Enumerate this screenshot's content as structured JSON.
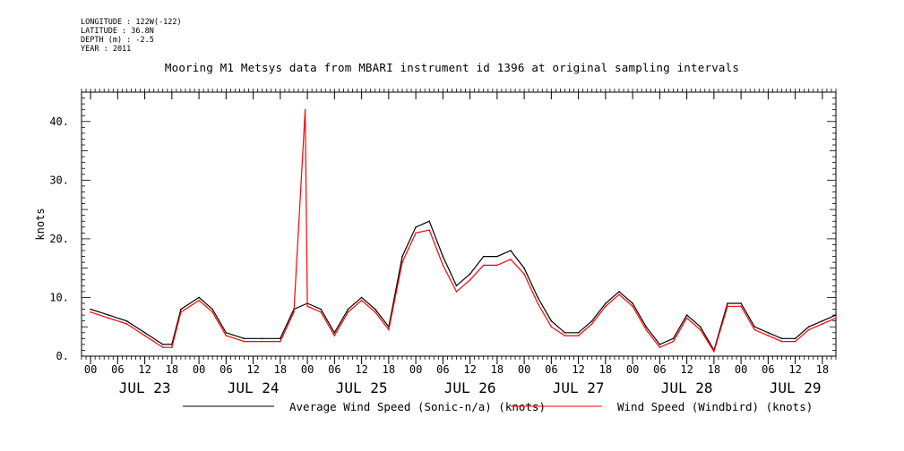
{
  "header": {
    "meta": [
      "LONGITUDE : 122W(-122)",
      "LATITUDE : 36.8N",
      "DEPTH (m) : -2.5",
      "YEAR : 2011"
    ],
    "title": "Mooring M1 Metsys data from MBARI instrument id 1396 at original sampling intervals"
  },
  "chart_data": {
    "type": "line",
    "title": "Mooring M1 Metsys data from MBARI instrument id 1396 at original sampling intervals",
    "xlabel": "",
    "ylabel": "knots",
    "ylim": [
      0,
      45
    ],
    "y_ticks": [
      0,
      10,
      20,
      30,
      40
    ],
    "y_tick_labels": [
      "0.",
      "10.",
      "20.",
      "30.",
      "40."
    ],
    "x_range_hours": [
      "2011-07-22 22:00",
      "2011-07-29 21:00"
    ],
    "x_hour_ticks": [
      "00",
      "06",
      "12",
      "18",
      "00",
      "06",
      "12",
      "18",
      "00",
      "06",
      "12",
      "18",
      "00",
      "06",
      "12",
      "18",
      "00",
      "06",
      "12",
      "18",
      "00",
      "06",
      "12",
      "18",
      "00",
      "06",
      "12",
      "18"
    ],
    "x_day_labels": [
      "JUL 23",
      "JUL 24",
      "JUL 25",
      "JUL 26",
      "JUL 27",
      "JUL 28",
      "JUL 29"
    ],
    "grid": false,
    "legend_position": "bottom",
    "series": [
      {
        "name": "Average Wind Speed (Sonic-n/a) (knots)",
        "color": "#000000",
        "x": [
          "07-23 00:00",
          "07-23 04:00",
          "07-23 08:00",
          "07-23 12:00",
          "07-23 16:00",
          "07-23 18:00",
          "07-23 20:00",
          "07-24 00:00",
          "07-24 03:00",
          "07-24 06:00",
          "07-24 10:00",
          "07-24 14:00",
          "07-24 18:00",
          "07-24 21:00",
          "07-25 00:00",
          "07-25 03:00",
          "07-25 06:00",
          "07-25 09:00",
          "07-25 12:00",
          "07-25 15:00",
          "07-25 18:00",
          "07-25 21:00",
          "07-26 00:00",
          "07-26 03:00",
          "07-26 06:00",
          "07-26 09:00",
          "07-26 12:00",
          "07-26 15:00",
          "07-26 18:00",
          "07-26 21:00",
          "07-27 00:00",
          "07-27 03:00",
          "07-27 06:00",
          "07-27 09:00",
          "07-27 12:00",
          "07-27 15:00",
          "07-27 18:00",
          "07-27 21:00",
          "07-28 00:00",
          "07-28 03:00",
          "07-28 06:00",
          "07-28 09:00",
          "07-28 12:00",
          "07-28 15:00",
          "07-28 18:00",
          "07-28 21:00",
          "07-29 00:00",
          "07-29 03:00",
          "07-29 06:00",
          "07-29 09:00",
          "07-29 12:00",
          "07-29 15:00",
          "07-29 18:00",
          "07-29 21:00"
        ],
        "values": [
          8,
          7,
          6,
          4,
          2,
          2,
          8,
          10,
          8,
          4,
          3,
          3,
          3,
          8,
          9,
          8,
          4,
          8,
          10,
          8,
          5,
          17,
          22,
          23,
          17,
          12,
          14,
          17,
          17,
          18,
          15,
          10,
          6,
          4,
          4,
          6,
          9,
          11,
          9,
          5,
          2,
          3,
          7,
          5,
          1,
          9,
          9,
          5,
          4,
          3,
          3,
          5,
          6,
          7
        ]
      },
      {
        "name": "Wind Speed (Windbird) (knots)",
        "color": "#ff0000",
        "x": [
          "07-23 00:00",
          "07-23 04:00",
          "07-23 08:00",
          "07-23 12:00",
          "07-23 16:00",
          "07-23 18:00",
          "07-23 20:00",
          "07-24 00:00",
          "07-24 03:00",
          "07-24 06:00",
          "07-24 10:00",
          "07-24 14:00",
          "07-24 18:00",
          "07-24 21:00",
          "07-24 23:30",
          "07-25 00:00",
          "07-25 03:00",
          "07-25 06:00",
          "07-25 09:00",
          "07-25 12:00",
          "07-25 15:00",
          "07-25 18:00",
          "07-25 21:00",
          "07-26 00:00",
          "07-26 03:00",
          "07-26 06:00",
          "07-26 09:00",
          "07-26 12:00",
          "07-26 15:00",
          "07-26 18:00",
          "07-26 21:00",
          "07-27 00:00",
          "07-27 03:00",
          "07-27 06:00",
          "07-27 09:00",
          "07-27 12:00",
          "07-27 15:00",
          "07-27 18:00",
          "07-27 21:00",
          "07-28 00:00",
          "07-28 03:00",
          "07-28 06:00",
          "07-28 09:00",
          "07-28 12:00",
          "07-28 15:00",
          "07-28 18:00",
          "07-28 21:00",
          "07-29 00:00",
          "07-29 03:00",
          "07-29 06:00",
          "07-29 09:00",
          "07-29 12:00",
          "07-29 15:00",
          "07-29 18:00",
          "07-29 21:00"
        ],
        "values": [
          7.5,
          6.5,
          5.5,
          3.5,
          1.5,
          1.5,
          7.5,
          9.5,
          7.5,
          3.5,
          2.5,
          2.5,
          2.5,
          7.5,
          42,
          8.5,
          7.5,
          3.5,
          7.5,
          9.5,
          7.5,
          4.5,
          16,
          21,
          21.5,
          15.5,
          11,
          13,
          15.5,
          15.5,
          16.5,
          14,
          9,
          5,
          3.5,
          3.5,
          5.5,
          8.5,
          10.5,
          8.5,
          4.5,
          1.5,
          2.5,
          6.5,
          4.5,
          0.8,
          8.5,
          8.5,
          4.5,
          3.5,
          2.5,
          2.5,
          4.5,
          5.5,
          6.5
        ]
      }
    ]
  }
}
